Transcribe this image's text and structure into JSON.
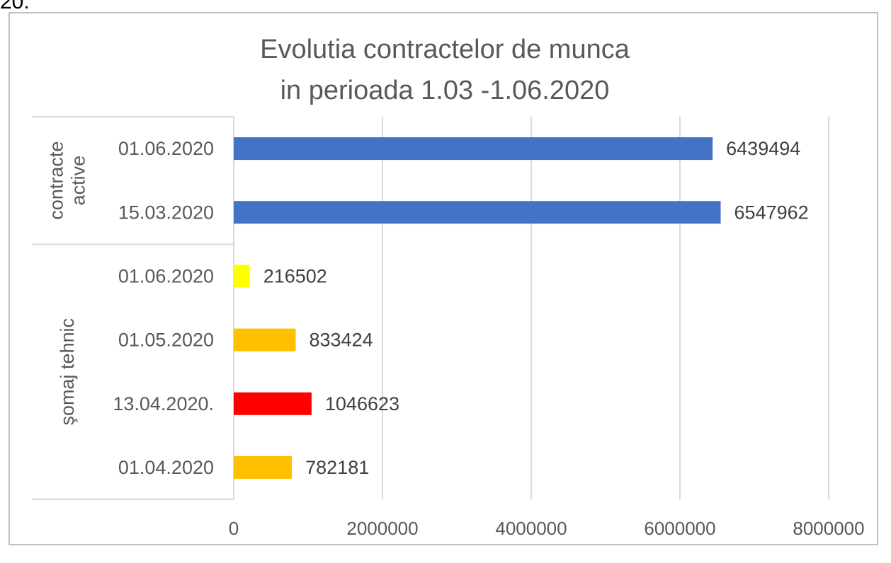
{
  "page": {
    "top_fragment": "20."
  },
  "chart_data": {
    "type": "bar",
    "orientation": "horizontal",
    "title_lines": [
      "Evolutia contractelor de munca",
      "in perioada 1.03 -1.06.2020"
    ],
    "groups": [
      {
        "name": "contracte active",
        "name_lines": [
          "contracte",
          "active"
        ],
        "rows": [
          {
            "label": "01.06.2020",
            "value": 6439494,
            "color": "#4472C4"
          },
          {
            "label": "15.03.2020",
            "value": 6547962,
            "color": "#4472C4"
          }
        ]
      },
      {
        "name": "şomaj tehnic",
        "name_lines": [
          "şomaj tehnic"
        ],
        "rows": [
          {
            "label": "01.06.2020",
            "value": 216502,
            "color": "#FFFF00"
          },
          {
            "label": "01.05.2020",
            "value": 833424,
            "color": "#FFC000"
          },
          {
            "label": "13.04.2020.",
            "value": 1046623,
            "color": "#FF0000"
          },
          {
            "label": "01.04.2020",
            "value": 782181,
            "color": "#FFC000"
          }
        ]
      }
    ],
    "xlim": [
      0,
      8000000
    ],
    "xticks": [
      0,
      2000000,
      4000000,
      6000000,
      8000000
    ],
    "xtick_labels": [
      "0",
      "2000000",
      "4000000",
      "6000000",
      "8000000"
    ],
    "grid": "vertical",
    "legend": "none",
    "xlabel": "",
    "ylabel": ""
  }
}
